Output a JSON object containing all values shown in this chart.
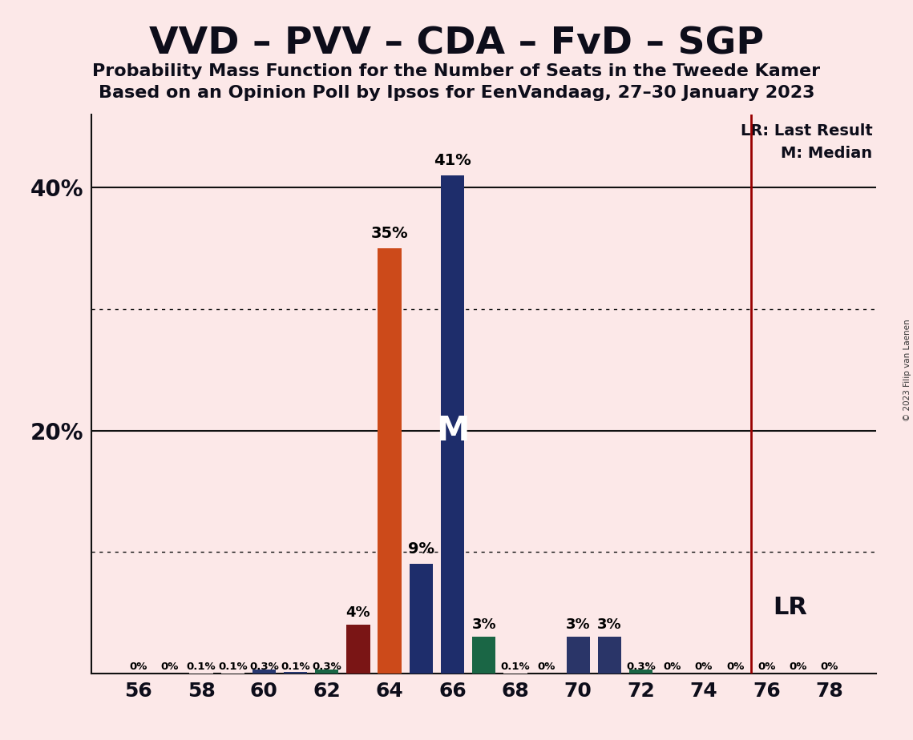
{
  "title1": "VVD – PVV – CDA – FvD – SGP",
  "title2": "Probability Mass Function for the Number of Seats in the Tweede Kamer",
  "title3": "Based on an Opinion Poll by Ipsos for EenVandaag, 27–30 January 2023",
  "background_color": "#fce8e8",
  "seats": [
    56,
    57,
    58,
    59,
    60,
    61,
    62,
    63,
    64,
    65,
    66,
    67,
    68,
    69,
    70,
    71,
    72,
    73,
    74,
    75,
    76,
    77,
    78
  ],
  "probabilities": [
    0.0,
    0.0,
    0.1,
    0.1,
    0.3,
    0.1,
    0.3,
    4.0,
    35.0,
    9.0,
    41.0,
    3.0,
    0.1,
    0.0,
    3.0,
    3.0,
    0.3,
    0.0,
    0.0,
    0.0,
    0.0,
    0.0,
    0.0
  ],
  "bar_colors": [
    "#fce8e8",
    "#fce8e8",
    "#fce8e8",
    "#fce8e8",
    "#283870",
    "#283870",
    "#1a6645",
    "#7a1515",
    "#cc4a1a",
    "#1e2d6b",
    "#1e2d6b",
    "#1a6645",
    "#fce8e8",
    "#fce8e8",
    "#2a3568",
    "#2a3568",
    "#1a6645",
    "#fce8e8",
    "#fce8e8",
    "#fce8e8",
    "#fce8e8",
    "#fce8e8",
    "#fce8e8"
  ],
  "label_texts": [
    "0%",
    "0%",
    "0.1%",
    "0.1%",
    "0.3%",
    "0.1%",
    "0.3%",
    "4%",
    "35%",
    "9%",
    "41%",
    "3%",
    "0.1%",
    "0%",
    "3%",
    "3%",
    "0.3%",
    "0%",
    "0%",
    "0%",
    "0%",
    "0%",
    "0%"
  ],
  "last_result_x": 75.5,
  "median_seat": 66,
  "lr_label": "LR: Last Result",
  "m_label": "M: Median",
  "lr_color": "#990000",
  "ytick_positions": [
    20,
    40
  ],
  "ytick_labels": [
    "20%",
    "40%"
  ],
  "ylim": [
    0,
    46
  ],
  "xlim": [
    54.5,
    79.5
  ],
  "xticks": [
    56,
    58,
    60,
    62,
    64,
    66,
    68,
    70,
    72,
    74,
    76,
    78
  ],
  "dotted_gridlines": [
    10,
    30
  ],
  "solid_gridlines": [
    20,
    40
  ],
  "copyright_text": "© 2023 Filip van Laenen",
  "bar_width": 0.75
}
